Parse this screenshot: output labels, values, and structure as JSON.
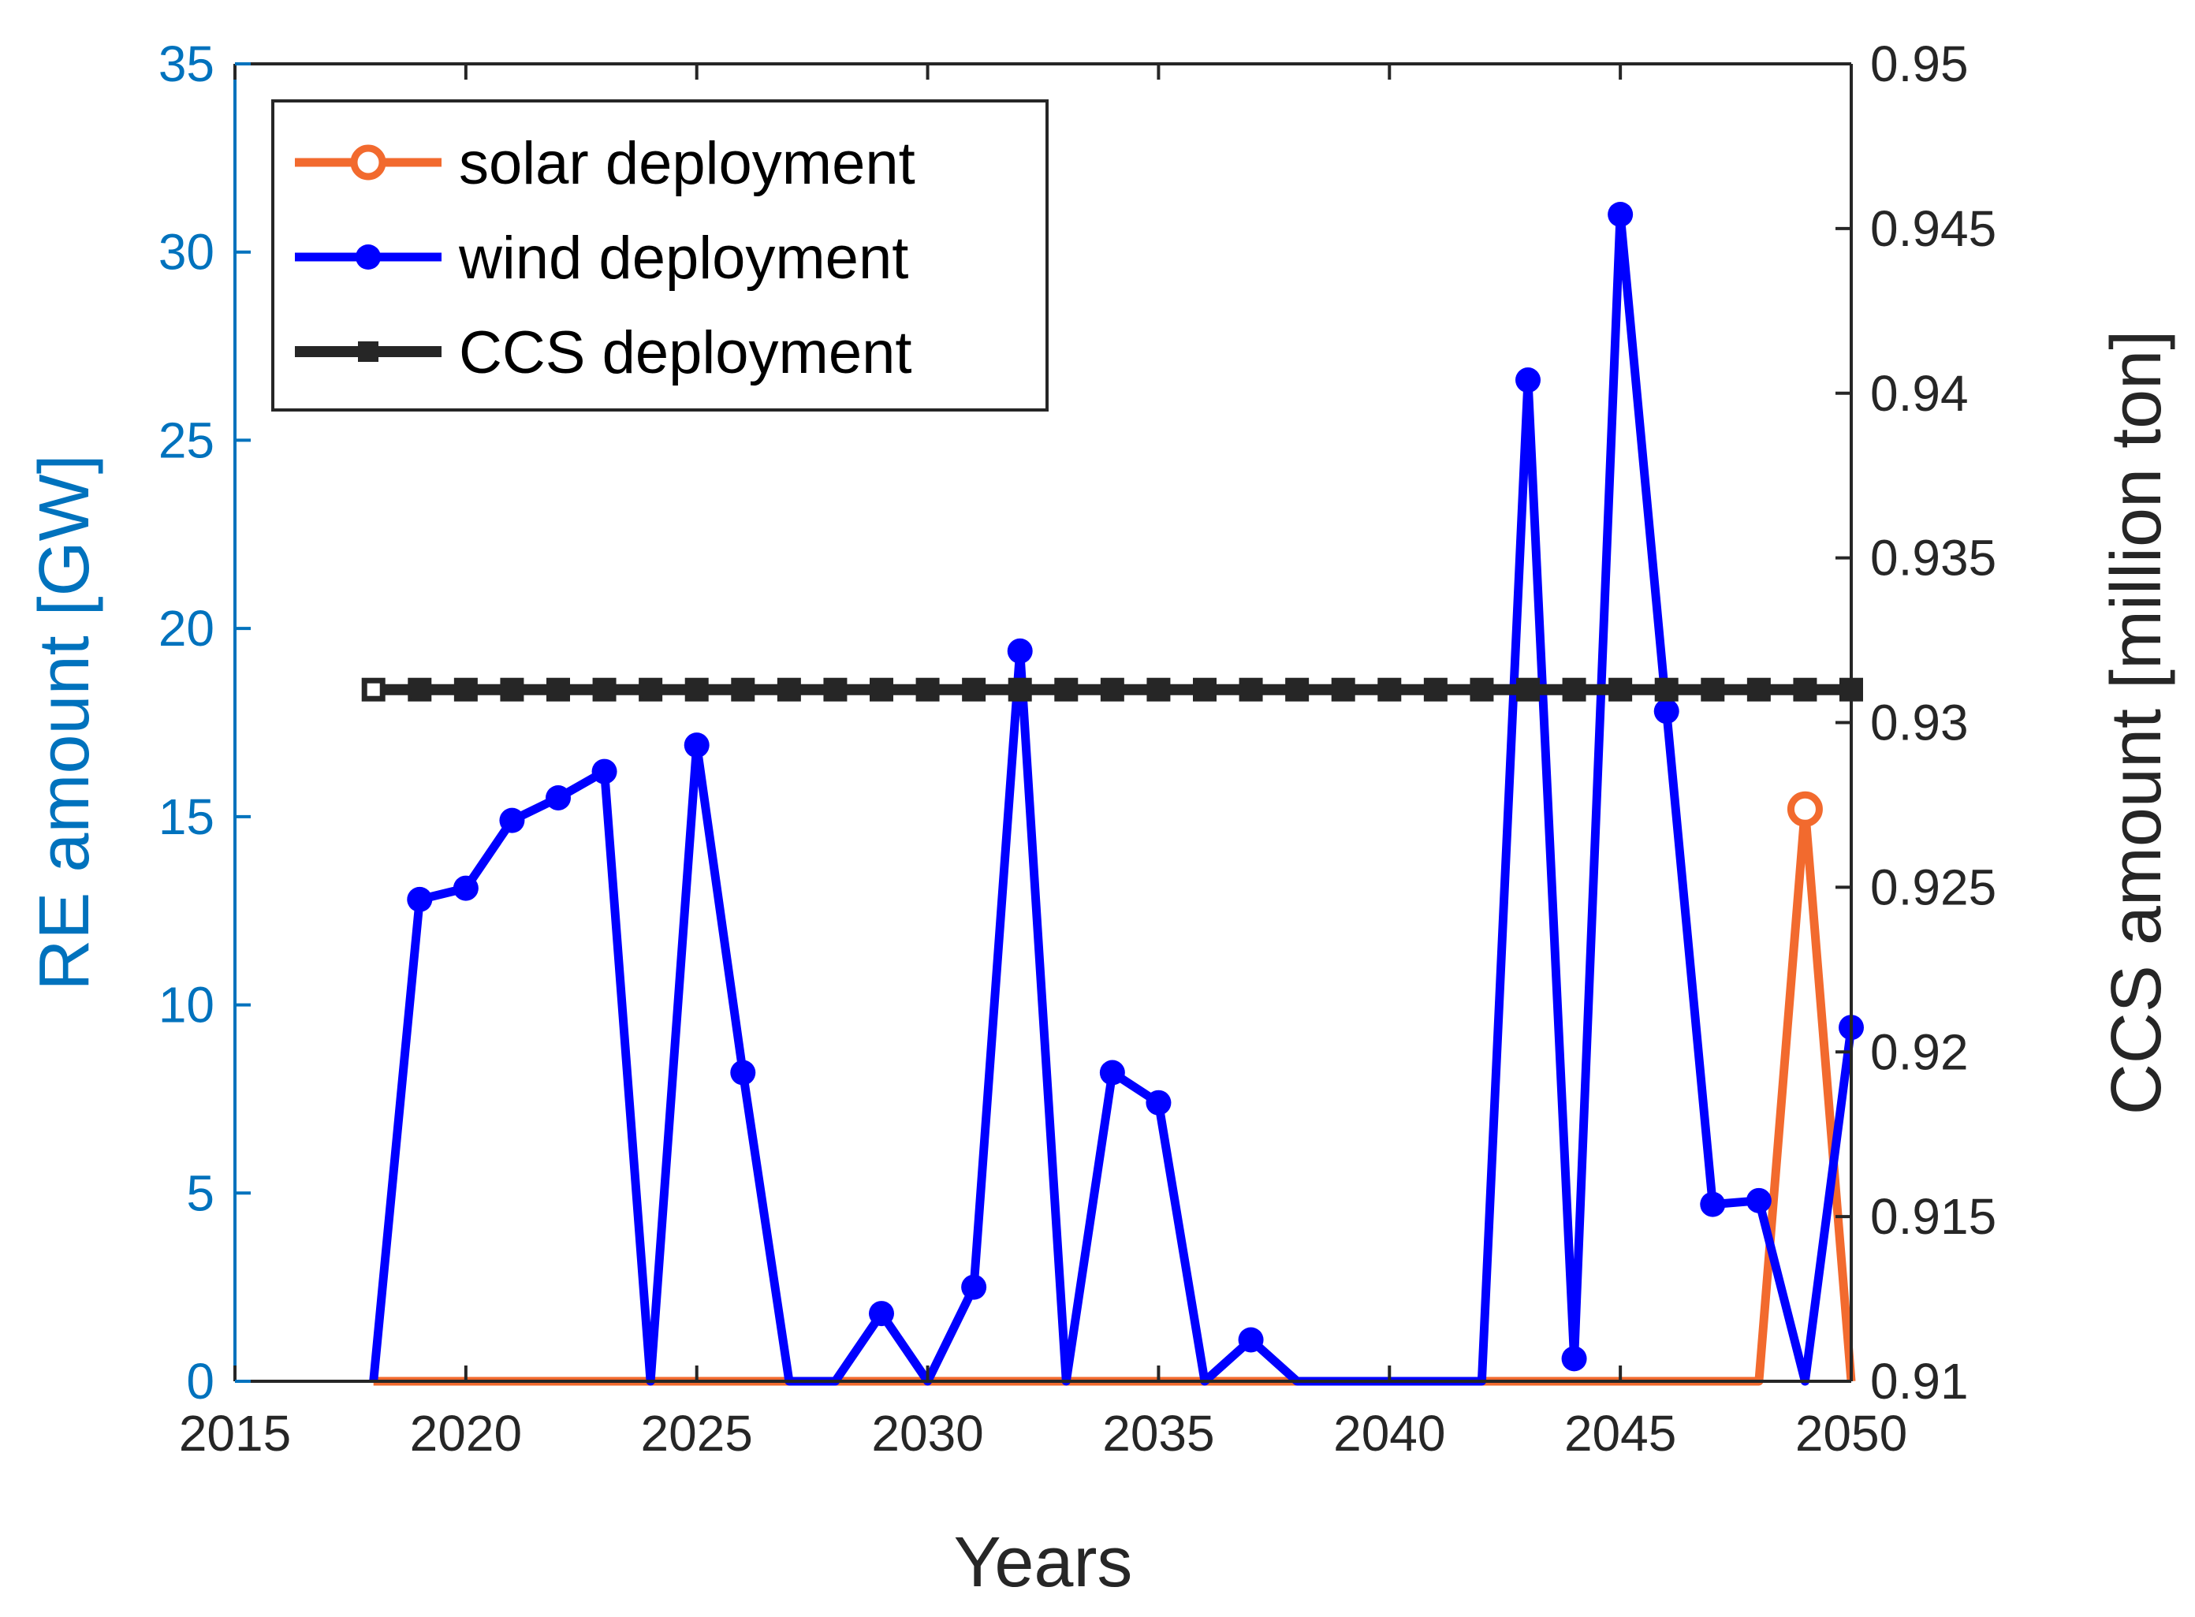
{
  "chart_data": {
    "type": "line",
    "xlabel": "Years",
    "ylabel_left": "RE amount [GW]",
    "ylabel_right": "CCS amount [million ton]",
    "xlim": [
      2015,
      2050
    ],
    "ylim_left": [
      0,
      35
    ],
    "ylim_right": [
      0.91,
      0.95
    ],
    "x_ticks": [
      "2015",
      "2020",
      "2025",
      "2030",
      "2035",
      "2040",
      "2045",
      "2050"
    ],
    "y_left_ticks": [
      "0",
      "5",
      "10",
      "15",
      "20",
      "25",
      "30",
      "35"
    ],
    "y_right_ticks": [
      "0.91",
      "0.915",
      "0.92",
      "0.925",
      "0.93",
      "0.935",
      "0.94",
      "0.945",
      "0.95"
    ],
    "legend_position": "top-left",
    "grid": false,
    "series": [
      {
        "name": "solar deployment",
        "axis": "left",
        "color": "#F26A2E",
        "marker": "open-circle",
        "x": [
          2018,
          2019,
          2020,
          2021,
          2022,
          2023,
          2024,
          2025,
          2026,
          2027,
          2028,
          2029,
          2030,
          2031,
          2032,
          2033,
          2034,
          2035,
          2036,
          2037,
          2038,
          2039,
          2040,
          2041,
          2042,
          2043,
          2044,
          2045,
          2046,
          2047,
          2048,
          2049,
          2050
        ],
        "values": [
          0,
          0,
          0,
          0,
          0,
          0,
          0,
          0,
          0,
          0,
          0,
          0,
          0,
          0,
          0,
          0,
          0,
          0,
          0,
          0,
          0,
          0,
          0,
          0,
          0,
          0,
          0,
          0,
          0,
          0,
          0,
          15.2,
          0
        ],
        "marked_points": [
          15.2
        ]
      },
      {
        "name": "wind deployment",
        "axis": "left",
        "color": "#0000FF",
        "marker": "filled-circle",
        "x": [
          2018,
          2019,
          2020,
          2021,
          2022,
          2023,
          2024,
          2025,
          2026,
          2027,
          2028,
          2029,
          2030,
          2031,
          2032,
          2033,
          2034,
          2035,
          2036,
          2037,
          2038,
          2039,
          2040,
          2041,
          2042,
          2043,
          2044,
          2045,
          2046,
          2047,
          2048,
          2049,
          2050
        ],
        "values": [
          0,
          12.8,
          13.1,
          14.9,
          15.5,
          16.2,
          0,
          16.9,
          8.2,
          0,
          0,
          1.8,
          0,
          2.5,
          19.4,
          0,
          8.2,
          7.4,
          0,
          1.1,
          0,
          0,
          0,
          0,
          0,
          26.6,
          0.6,
          31.0,
          17.8,
          4.7,
          4.8,
          0,
          9.4
        ],
        "marked_points": [
          12.8,
          13.1,
          14.9,
          15.5,
          16.2,
          16.9,
          8.2,
          1.8,
          2.5,
          19.4,
          8.2,
          7.4,
          1.1,
          26.6,
          0.6,
          31.0,
          17.8,
          4.7,
          4.8
        ]
      },
      {
        "name": "CCS deployment",
        "axis": "right",
        "color": "#262626",
        "marker": "square",
        "x": [
          2018,
          2019,
          2020,
          2021,
          2022,
          2023,
          2024,
          2025,
          2026,
          2027,
          2028,
          2029,
          2030,
          2031,
          2032,
          2033,
          2034,
          2035,
          2036,
          2037,
          2038,
          2039,
          2040,
          2041,
          2042,
          2043,
          2044,
          2045,
          2046,
          2047,
          2048,
          2049,
          2050
        ],
        "values": [
          0.931,
          0.931,
          0.931,
          0.931,
          0.931,
          0.931,
          0.931,
          0.931,
          0.931,
          0.931,
          0.931,
          0.931,
          0.931,
          0.931,
          0.931,
          0.931,
          0.931,
          0.931,
          0.931,
          0.931,
          0.931,
          0.931,
          0.931,
          0.931,
          0.931,
          0.931,
          0.931,
          0.931,
          0.931,
          0.931,
          0.931,
          0.931,
          0.931
        ]
      }
    ],
    "colors": {
      "left_axis": "#0072BD",
      "right_axis": "#262626",
      "frame": "#262626"
    }
  }
}
